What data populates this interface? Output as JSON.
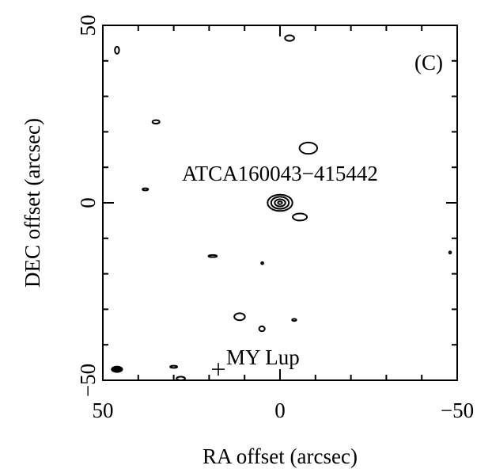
{
  "chart_data": {
    "type": "contour",
    "xlabel": "RA offset (arcsec)",
    "ylabel": "DEC offset (arcsec)",
    "panel_label": "(C)",
    "source_label": "ATCA160043−415442",
    "xlim": [
      50,
      -50
    ],
    "ylim": [
      -50,
      50
    ],
    "xticks": [
      50,
      0,
      {
        "value": -50,
        "label": "−50"
      }
    ],
    "yticks": [
      {
        "value": -50,
        "label": "−50"
      },
      0,
      50
    ],
    "minor_ticks": [
      -40,
      -30,
      -20,
      -10,
      10,
      20,
      30,
      40
    ],
    "color": "#000000",
    "contours": [
      {
        "ra": 0,
        "dec": 0,
        "rx": 3.5,
        "ry": 2.3
      },
      {
        "ra": 0,
        "dec": 0,
        "rx": 2.5,
        "ry": 1.7
      },
      {
        "ra": 0,
        "dec": 0,
        "rx": 1.5,
        "ry": 1.0
      },
      {
        "ra": 0,
        "dec": 0,
        "rx": 0.6,
        "ry": 0.4
      },
      {
        "ra": -8,
        "dec": 15.4,
        "rx": 2.5,
        "ry": 1.6
      },
      {
        "ra": -5.6,
        "dec": -4,
        "rx": 2,
        "ry": 1
      },
      {
        "ra": -2.7,
        "dec": 46.4,
        "rx": 1.3,
        "ry": 0.8
      },
      {
        "ra": 35,
        "dec": 22.8,
        "rx": 1,
        "ry": 0.5
      },
      {
        "ra": 11.4,
        "dec": -32.1,
        "rx": 1.5,
        "ry": 1
      },
      {
        "ra": 5.1,
        "dec": -35.5,
        "rx": 0.8,
        "ry": 0.7
      },
      {
        "ra": -4,
        "dec": -33,
        "rx": 0.6,
        "ry": 0.3
      },
      {
        "ra": 30,
        "dec": -46.2,
        "rx": 1,
        "ry": 0.3
      },
      {
        "ra": 28,
        "dec": -49.5,
        "rx": 1.2,
        "ry": 0.5
      },
      {
        "ra": 19,
        "dec": -15,
        "rx": 1.2,
        "ry": 0.3
      },
      {
        "ra": 38,
        "dec": 3.8,
        "rx": 0.8,
        "ry": 0.3
      },
      {
        "ra": 46,
        "dec": 43,
        "rx": 0.6,
        "ry": 1
      },
      {
        "ra": -48,
        "dec": -14,
        "rx": 0.3,
        "ry": 0.3
      },
      {
        "ra": 5,
        "dec": -17,
        "rx": 0.3,
        "ry": 0.3
      }
    ],
    "beam": {
      "ra": 46,
      "dec": -46.9,
      "rx": 1.7,
      "ry": 1
    },
    "markers": [
      {
        "label": "MY Lup",
        "ra": 17.4,
        "dec": -46.9
      }
    ]
  }
}
